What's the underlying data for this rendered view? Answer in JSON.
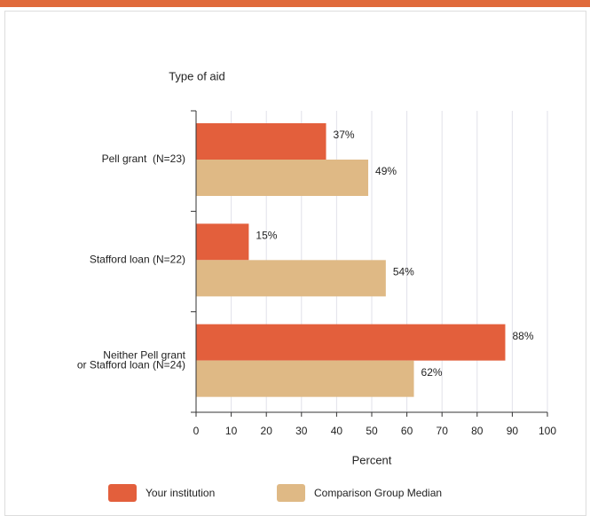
{
  "chart_data": {
    "type": "bar",
    "orientation": "horizontal",
    "y_axis_title": "Type of aid",
    "x_axis_title": "Percent",
    "categories": [
      [
        "Pell grant  (N=23)"
      ],
      [
        "Stafford loan (N=22)"
      ],
      [
        "Neither Pell grant",
        "or Stafford loan (N=24)"
      ]
    ],
    "series": [
      {
        "name": "Your institution",
        "color": "#e35f3c",
        "values": [
          37,
          15,
          88
        ],
        "value_labels": [
          "37%",
          "15%",
          "88%"
        ]
      },
      {
        "name": "Comparison Group Median",
        "color": "#dfb985",
        "values": [
          49,
          54,
          62
        ],
        "value_labels": [
          "49%",
          "54%",
          "62%"
        ]
      }
    ],
    "xlim": [
      0,
      100
    ],
    "xticks": [
      0,
      10,
      20,
      30,
      40,
      50,
      60,
      70,
      80,
      90,
      100
    ],
    "grid": true
  }
}
